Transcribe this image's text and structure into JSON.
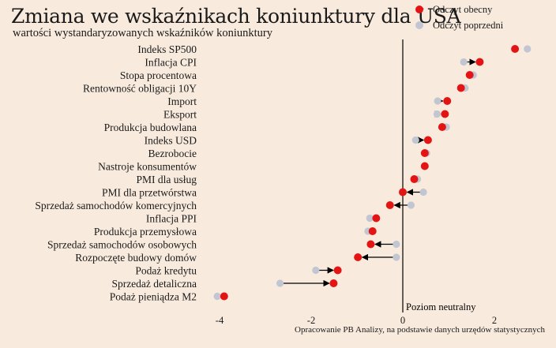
{
  "title": "Zmiana we wskaźnikach koniunktury dla USA",
  "subtitle": "wartości wystandaryzowanych wskaźników koniunktury",
  "caption": "Opracowanie PB Analizy, na podstawie danych urzędów statystycznych",
  "neutral_label": "Poziom neutralny",
  "legend": {
    "current": "Odczyt obecny",
    "previous": "Odczyt poprzedni"
  },
  "colors": {
    "background": "#f8ebdd",
    "current": "#e41414",
    "previous": "#c2c6d2",
    "arrow": "#000000"
  },
  "chart_data": {
    "type": "dot-arrow",
    "title": "Zmiana we wskaźnikach koniunktury dla USA",
    "xlim": [
      -4.6,
      3.1
    ],
    "xticks": [
      "-4",
      "-2",
      "0",
      "2"
    ],
    "xtick_values": [
      -4,
      -2,
      0,
      2
    ],
    "categories": [
      "Indeks SP500",
      "Inflacja CPI",
      "Stopa procentowa",
      "Rentowność obligacji 10Y",
      "Import",
      "Eksport",
      "Produkcja budowlana",
      "Indeks USD",
      "Bezrobocie",
      "Nastroje konsumentów",
      "PMI dla usług",
      "PMI dla przetwórstwa",
      "Sprzedaż samochodów komercyjnych",
      "Inflacja PPI",
      "Produkcja przemysłowa",
      "Sprzedaż samochodów osobowych",
      "Rozpoczęte budowy domów",
      "Podaż kredytu",
      "Sprzedaż detaliczna",
      "Podaż pieniądza M2"
    ],
    "series": [
      {
        "name": "Odczyt obecny",
        "values": [
          2.45,
          1.68,
          1.46,
          1.27,
          0.97,
          0.92,
          0.86,
          0.55,
          0.48,
          0.48,
          0.25,
          0.0,
          -0.28,
          -0.58,
          -0.66,
          -0.7,
          -0.98,
          -1.42,
          -1.51,
          -3.9
        ]
      },
      {
        "name": "Odczyt poprzedni",
        "values": [
          2.72,
          1.33,
          1.54,
          1.36,
          0.76,
          0.75,
          0.95,
          0.28,
          0.52,
          0.48,
          0.32,
          0.45,
          0.18,
          -0.72,
          -0.76,
          -0.14,
          -0.14,
          -1.9,
          -2.68,
          -4.05
        ]
      }
    ],
    "arrows": [
      false,
      true,
      false,
      false,
      true,
      true,
      false,
      true,
      false,
      false,
      false,
      true,
      true,
      false,
      false,
      true,
      true,
      true,
      true,
      false
    ]
  }
}
